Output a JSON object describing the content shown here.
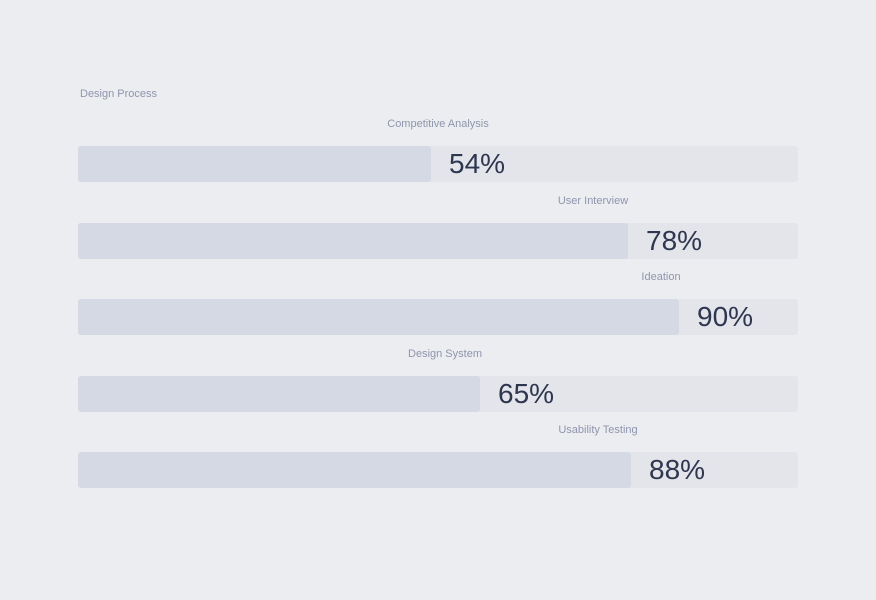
{
  "chart_data": {
    "type": "bar",
    "orientation": "horizontal",
    "title": "Design Process",
    "categories": [
      "Competitive Analysis",
      "User Interview",
      "Ideation",
      "Design System",
      "Usability Testing"
    ],
    "values": [
      54,
      78,
      90,
      65,
      88
    ],
    "value_labels": [
      "54%",
      "78%",
      "90%",
      "65%",
      "88%"
    ],
    "unit": "%",
    "xlim": [
      0,
      100
    ],
    "grid": false,
    "legend": "none"
  },
  "colors": {
    "background": "#ecedf0",
    "track": "#e4e5ea",
    "fill": "#d5d9e3",
    "value_text": "#2e3650",
    "label_text": "#8e96ad"
  }
}
